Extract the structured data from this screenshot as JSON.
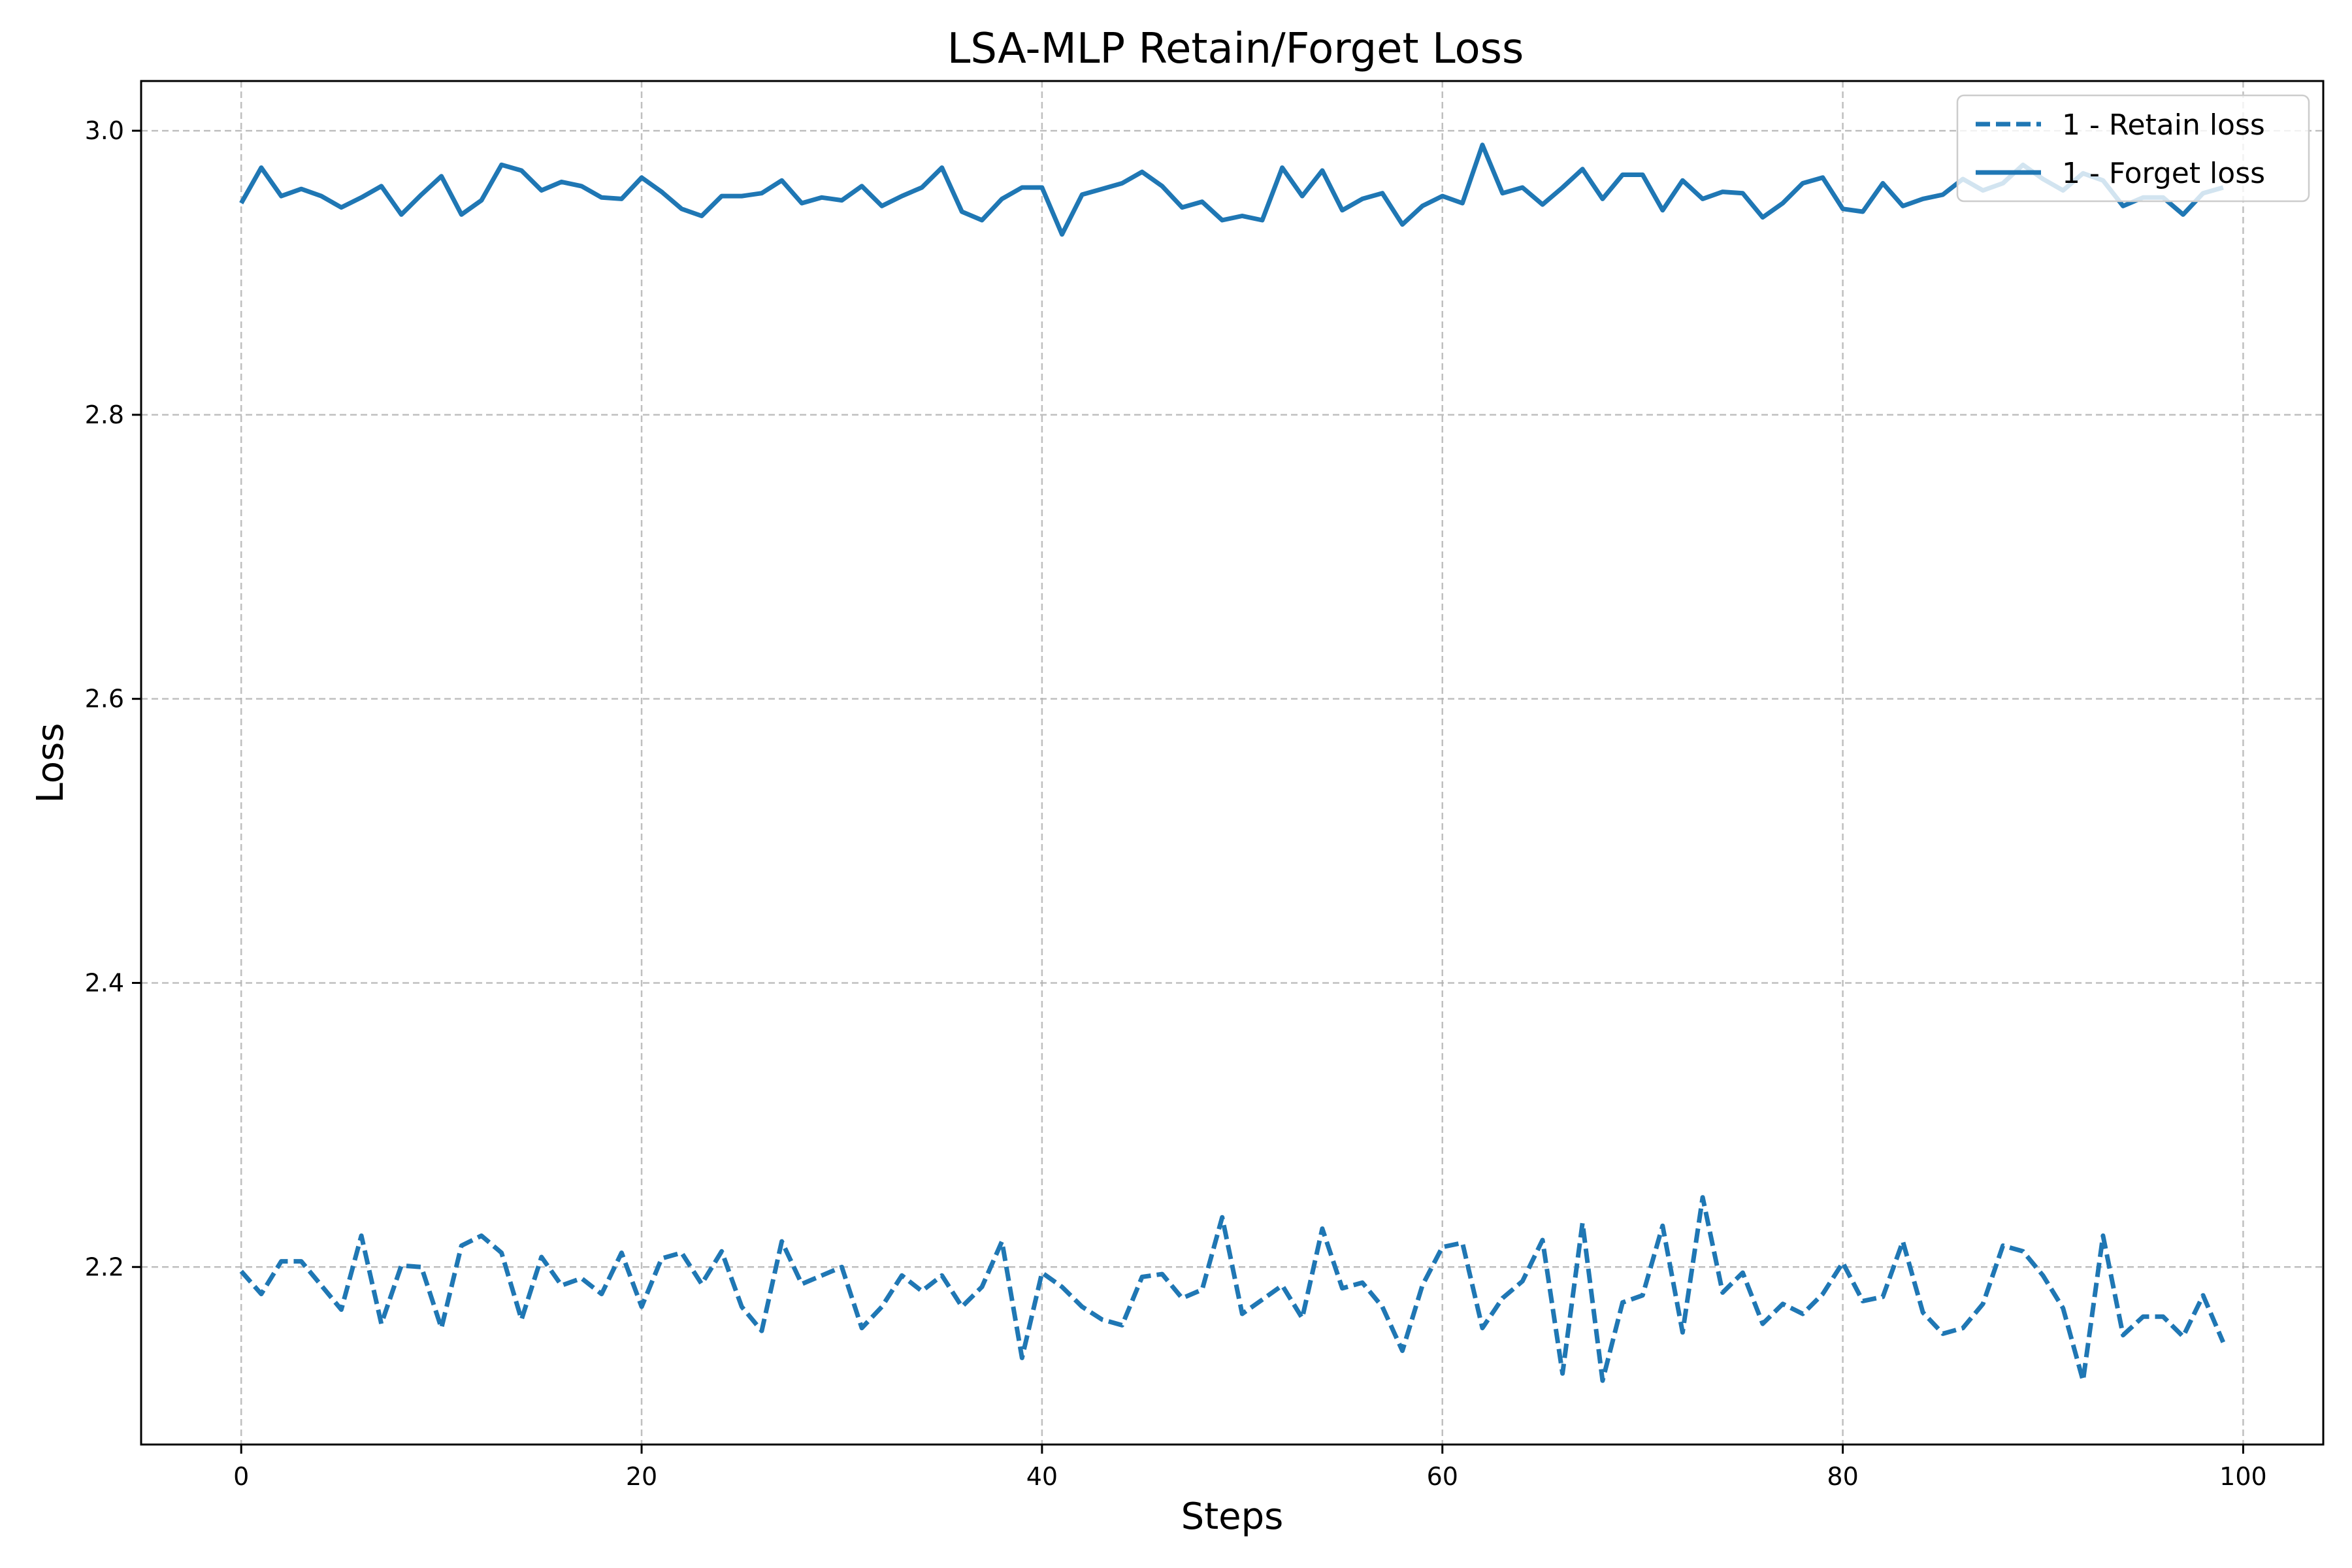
{
  "chart_data": {
    "type": "line",
    "title": "LSA-MLP Retain/Forget Loss",
    "xlabel": "Steps",
    "ylabel": "Loss",
    "xlim": [
      -5,
      104
    ],
    "ylim": [
      2.075,
      3.035
    ],
    "xticks": [
      0,
      20,
      40,
      60,
      80,
      100
    ],
    "yticks": [
      2.2,
      2.4,
      2.6,
      2.8,
      3.0
    ],
    "ytick_labels": [
      "2.2",
      "2.4",
      "2.6",
      "2.8",
      "3.0"
    ],
    "grid": true,
    "legend_position": "upper right",
    "color": "#1f77b4",
    "x": [
      0,
      1,
      2,
      3,
      4,
      5,
      6,
      7,
      8,
      9,
      10,
      11,
      12,
      13,
      14,
      15,
      16,
      17,
      18,
      19,
      20,
      21,
      22,
      23,
      24,
      25,
      26,
      27,
      28,
      29,
      30,
      31,
      32,
      33,
      34,
      35,
      36,
      37,
      38,
      39,
      40,
      41,
      42,
      43,
      44,
      45,
      46,
      47,
      48,
      49,
      50,
      51,
      52,
      53,
      54,
      55,
      56,
      57,
      58,
      59,
      60,
      61,
      62,
      63,
      64,
      65,
      66,
      67,
      68,
      69,
      70,
      71,
      72,
      73,
      74,
      75,
      76,
      77,
      78,
      79,
      80,
      81,
      82,
      83,
      84,
      85,
      86,
      87,
      88,
      89,
      90,
      91,
      92,
      93,
      94,
      95,
      96,
      97,
      98,
      99
    ],
    "series": [
      {
        "name": "1 - Retain loss",
        "style": "dashed",
        "values": [
          2.197,
          2.181,
          2.204,
          2.204,
          2.187,
          2.17,
          2.222,
          2.16,
          2.201,
          2.2,
          2.157,
          2.215,
          2.222,
          2.21,
          2.163,
          2.207,
          2.187,
          2.192,
          2.181,
          2.21,
          2.172,
          2.206,
          2.21,
          2.188,
          2.211,
          2.172,
          2.155,
          2.218,
          2.188,
          2.194,
          2.2,
          2.157,
          2.172,
          2.194,
          2.183,
          2.194,
          2.172,
          2.186,
          2.218,
          2.136,
          2.196,
          2.186,
          2.172,
          2.163,
          2.159,
          2.193,
          2.195,
          2.178,
          2.184,
          2.235,
          2.167,
          2.177,
          2.187,
          2.164,
          2.227,
          2.185,
          2.189,
          2.172,
          2.141,
          2.187,
          2.214,
          2.217,
          2.157,
          2.178,
          2.19,
          2.219,
          2.125,
          2.231,
          2.12,
          2.175,
          2.18,
          2.229,
          2.154,
          2.249,
          2.182,
          2.196,
          2.16,
          2.174,
          2.167,
          2.181,
          2.203,
          2.176,
          2.179,
          2.218,
          2.168,
          2.153,
          2.157,
          2.174,
          2.215,
          2.211,
          2.194,
          2.171,
          2.12,
          2.222,
          2.152,
          2.165,
          2.165,
          2.151,
          2.18,
          2.147
        ]
      },
      {
        "name": "1 - Forget loss",
        "style": "solid",
        "values": [
          2.949,
          2.974,
          2.954,
          2.959,
          2.954,
          2.946,
          2.953,
          2.961,
          2.941,
          2.955,
          2.968,
          2.941,
          2.951,
          2.976,
          2.972,
          2.958,
          2.964,
          2.961,
          2.953,
          2.952,
          2.967,
          2.957,
          2.945,
          2.94,
          2.954,
          2.954,
          2.956,
          2.965,
          2.949,
          2.953,
          2.951,
          2.961,
          2.947,
          2.954,
          2.96,
          2.974,
          2.943,
          2.937,
          2.952,
          2.96,
          2.96,
          2.927,
          2.955,
          2.959,
          2.963,
          2.971,
          2.961,
          2.946,
          2.95,
          2.937,
          2.94,
          2.937,
          2.974,
          2.954,
          2.972,
          2.944,
          2.952,
          2.956,
          2.934,
          2.947,
          2.954,
          2.949,
          2.99,
          2.956,
          2.96,
          2.948,
          2.96,
          2.973,
          2.952,
          2.969,
          2.969,
          2.944,
          2.965,
          2.952,
          2.957,
          2.956,
          2.939,
          2.949,
          2.963,
          2.967,
          2.945,
          2.943,
          2.963,
          2.947,
          2.952,
          2.955,
          2.966,
          2.958,
          2.963,
          2.976,
          2.966,
          2.958,
          2.97,
          2.965,
          2.947,
          2.953,
          2.953,
          2.941,
          2.956,
          2.96
        ]
      }
    ]
  }
}
